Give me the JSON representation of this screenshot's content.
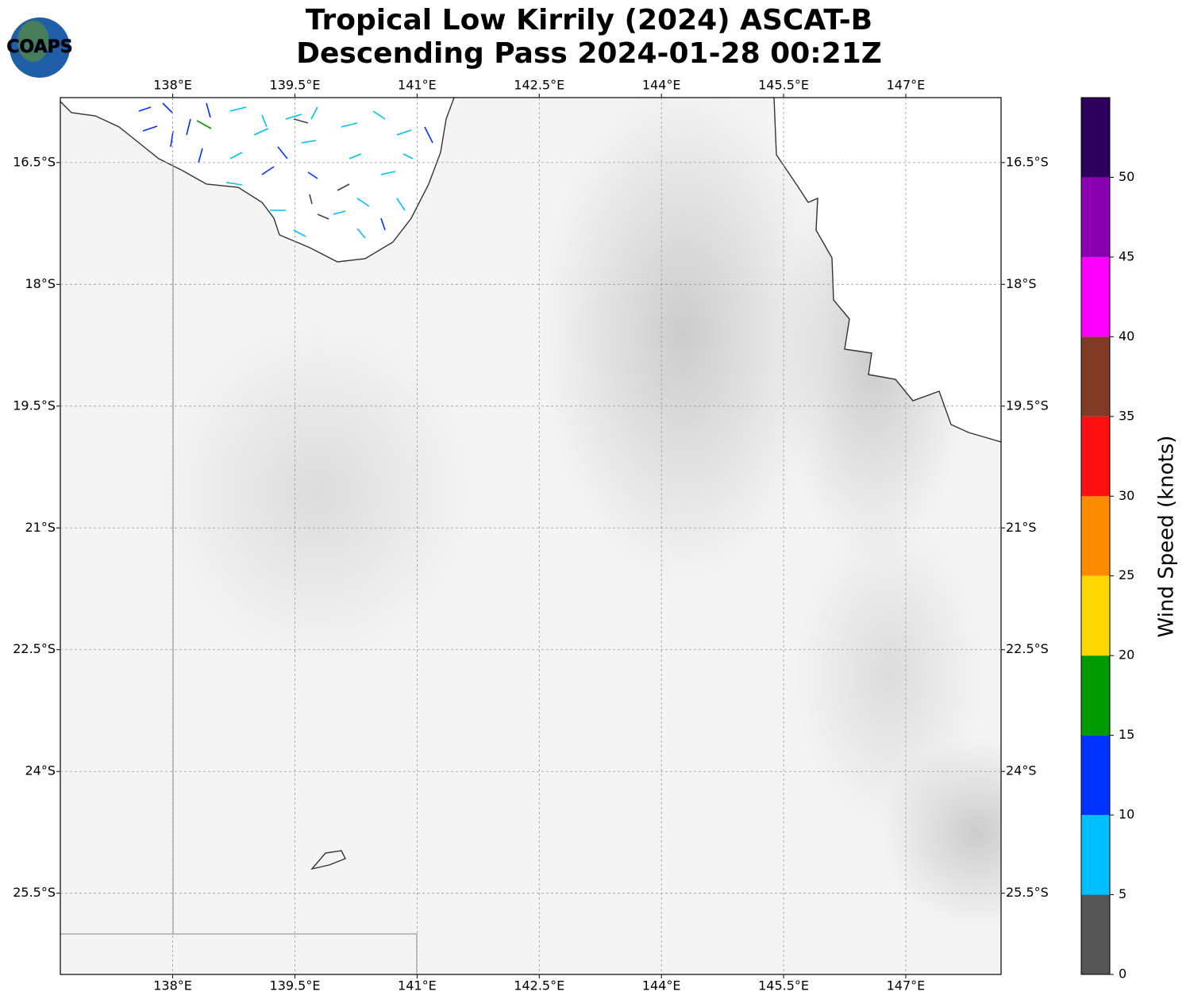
{
  "logo": "COAPS",
  "chart_data": {
    "type": "map",
    "title": "Tropical Low Kirrily (2024) ASCAT-B",
    "subtitle": "Descending Pass 2024-01-28 00:21Z",
    "xlim": [
      136.62,
      148.17
    ],
    "ylim": [
      -26.5,
      -15.7
    ],
    "xticks": [
      {
        "value": 138,
        "label": "138°E"
      },
      {
        "value": 139.5,
        "label": "139.5°E"
      },
      {
        "value": 141,
        "label": "141°E"
      },
      {
        "value": 142.5,
        "label": "142.5°E"
      },
      {
        "value": 144,
        "label": "144°E"
      },
      {
        "value": 145.5,
        "label": "145.5°E"
      },
      {
        "value": 147,
        "label": "147°E"
      }
    ],
    "yticks": [
      {
        "value": -16.5,
        "label": "16.5°S"
      },
      {
        "value": -18,
        "label": "18°S"
      },
      {
        "value": -19.5,
        "label": "19.5°S"
      },
      {
        "value": -21,
        "label": "21°S"
      },
      {
        "value": -22.5,
        "label": "22.5°S"
      },
      {
        "value": -24,
        "label": "24°S"
      },
      {
        "value": -25.5,
        "label": "25.5°S"
      }
    ],
    "grid": true,
    "colorbar": {
      "label": "Wind Speed (knots)",
      "lim": [
        0,
        55
      ],
      "ticks": [
        0,
        5,
        10,
        15,
        20,
        25,
        30,
        35,
        40,
        45,
        50
      ],
      "colors": [
        "#555555",
        "#00bfff",
        "#0033ff",
        "#009900",
        "#ffd700",
        "#ff8c00",
        "#ff1010",
        "#803a26",
        "#ff00ff",
        "#8a00b0",
        "#2d005c"
      ]
    }
  }
}
